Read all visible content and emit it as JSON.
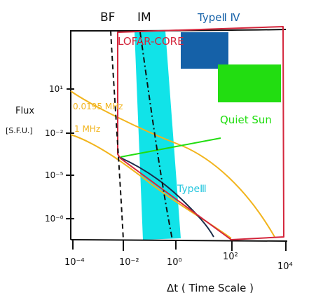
{
  "labels": {
    "bf": "BF",
    "im": "IM",
    "type_ii_iv": "TypeⅡ Ⅳ",
    "lofar_core": "LOFAR-CORE",
    "quiet_sun": "Quiet Sun",
    "type_iii": "TypeⅢ",
    "freq_high": "0.0195 MHz",
    "freq_low": "1 MHz",
    "y_axis_title": "Flux",
    "y_axis_unit": "[S.F.U.]",
    "x_axis_title": "Δt ( Time Scale )"
  },
  "y_ticks": [
    "10¹",
    "10⁻²",
    "10⁻⁵",
    "10⁻⁸"
  ],
  "x_ticks": [
    "10⁻⁴",
    "10⁻²",
    "10⁰",
    "10²",
    "10⁴"
  ],
  "colors": {
    "lofar": "#d4263c",
    "type_ii_iv": "#1561a8",
    "quiet_sun": "#22dd11",
    "type_iii_band": "#11e3e8",
    "type_iii_label": "#27c7de",
    "orange": "#f2b41c",
    "ink": "#111111",
    "dark_line": "#1b2d4a"
  }
}
